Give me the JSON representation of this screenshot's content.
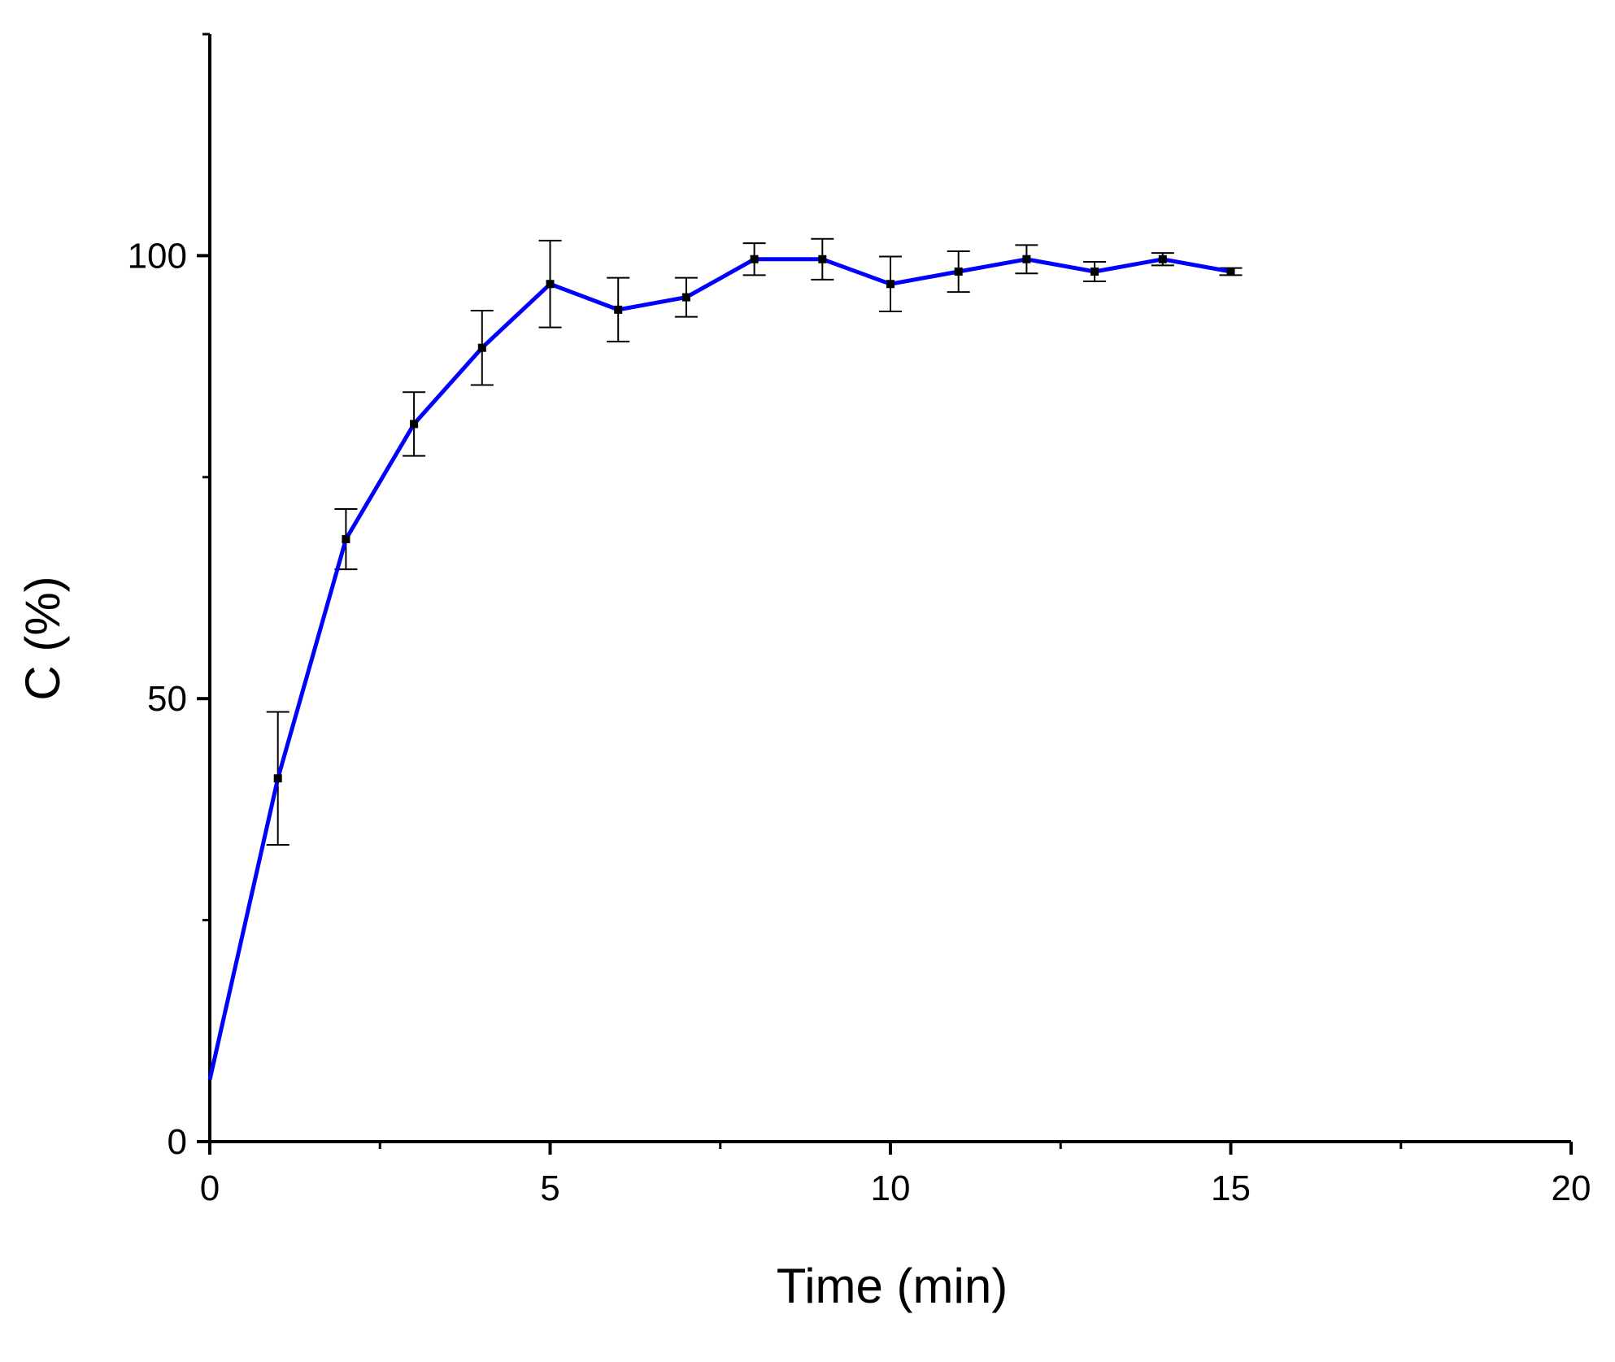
{
  "chart_data": {
    "type": "line",
    "title": "",
    "xlabel": "Time (min)",
    "ylabel": "C (%)",
    "xlim": [
      0,
      20
    ],
    "ylim": [
      0,
      125
    ],
    "x_ticks": [
      0,
      5,
      10,
      15,
      20
    ],
    "x_tick_labels": [
      "0",
      "5",
      "10",
      "15",
      "20"
    ],
    "x_minor_ticks": [
      2.5,
      7.5,
      12.5,
      17.5
    ],
    "y_ticks": [
      0,
      50,
      100
    ],
    "y_tick_labels": [
      "0",
      "50",
      "100"
    ],
    "y_minor_ticks": [
      25,
      75
    ],
    "grid": false,
    "legend": "none",
    "series": [
      {
        "color": "#0000ff",
        "marker_color": "#000000",
        "errorbar_color": "#000000",
        "x": [
          0,
          1,
          2,
          3,
          4,
          5,
          6,
          7,
          8,
          9,
          10,
          11,
          12,
          13,
          14,
          15
        ],
        "y": [
          7,
          41,
          68,
          81,
          89.6,
          96.8,
          93.9,
          95.3,
          99.6,
          99.6,
          96.8,
          98.2,
          99.6,
          98.2,
          99.6,
          98.2
        ],
        "error": [
          0,
          7.5,
          3.4,
          3.6,
          4.2,
          4.9,
          3.6,
          2.2,
          1.8,
          2.3,
          3.1,
          2.3,
          1.6,
          1.1,
          0.7,
          0.4
        ],
        "markers": [
          false,
          true,
          true,
          true,
          true,
          true,
          true,
          true,
          true,
          true,
          true,
          true,
          true,
          true,
          true,
          true
        ]
      }
    ]
  }
}
